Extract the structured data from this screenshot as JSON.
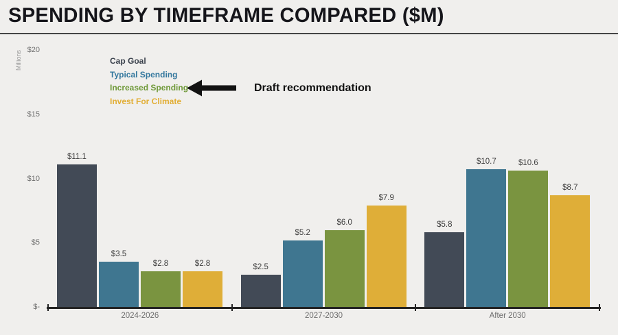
{
  "title": "SPENDING BY TIMEFRAME COMPARED ($M)",
  "annotation": {
    "label": "Draft recommendation",
    "arrow_icon": "arrow-left-icon",
    "arrow_color": "#121212"
  },
  "legend": [
    {
      "label": "Cap Goal",
      "color": "#3a414c"
    },
    {
      "label": "Typical Spending",
      "color": "#34789e"
    },
    {
      "label": "Increased Spending",
      "color": "#6f9939"
    },
    {
      "label": "Invest For Climate",
      "color": "#e2ae35"
    }
  ],
  "chart_data": {
    "type": "bar",
    "title": "SPENDING BY TIMEFRAME COMPARED ($M)",
    "categories": [
      "2024-2026",
      "2027-2030",
      "After 2030"
    ],
    "series": [
      {
        "name": "Cap Goal",
        "color": "#424a56",
        "values": [
          11.1,
          2.5,
          5.8
        ]
      },
      {
        "name": "Typical Spending",
        "color": "#3f7690",
        "values": [
          3.5,
          5.2,
          10.7
        ]
      },
      {
        "name": "Increased Spending",
        "color": "#7a9440",
        "values": [
          2.8,
          6.0,
          10.6
        ]
      },
      {
        "name": "Invest For Climate",
        "color": "#dfae38",
        "values": [
          2.8,
          7.9,
          8.7
        ]
      }
    ],
    "data_labels": [
      [
        "$11.1",
        "$2.5",
        "$5.8"
      ],
      [
        "$3.5",
        "$5.2",
        "$10.7"
      ],
      [
        "$2.8",
        "$6.0",
        "$10.6"
      ],
      [
        "$2.8",
        "$7.9",
        "$8.7"
      ]
    ],
    "ylabel": "Millions",
    "xlabel": "",
    "ylim": [
      0,
      20
    ],
    "yticks": [
      {
        "value": 0,
        "label": "$-"
      },
      {
        "value": 5,
        "label": "$5"
      },
      {
        "value": 10,
        "label": "$10"
      },
      {
        "value": 15,
        "label": "$15"
      },
      {
        "value": 20,
        "label": "$20"
      }
    ],
    "grid": false,
    "legend_position": "top-left"
  }
}
